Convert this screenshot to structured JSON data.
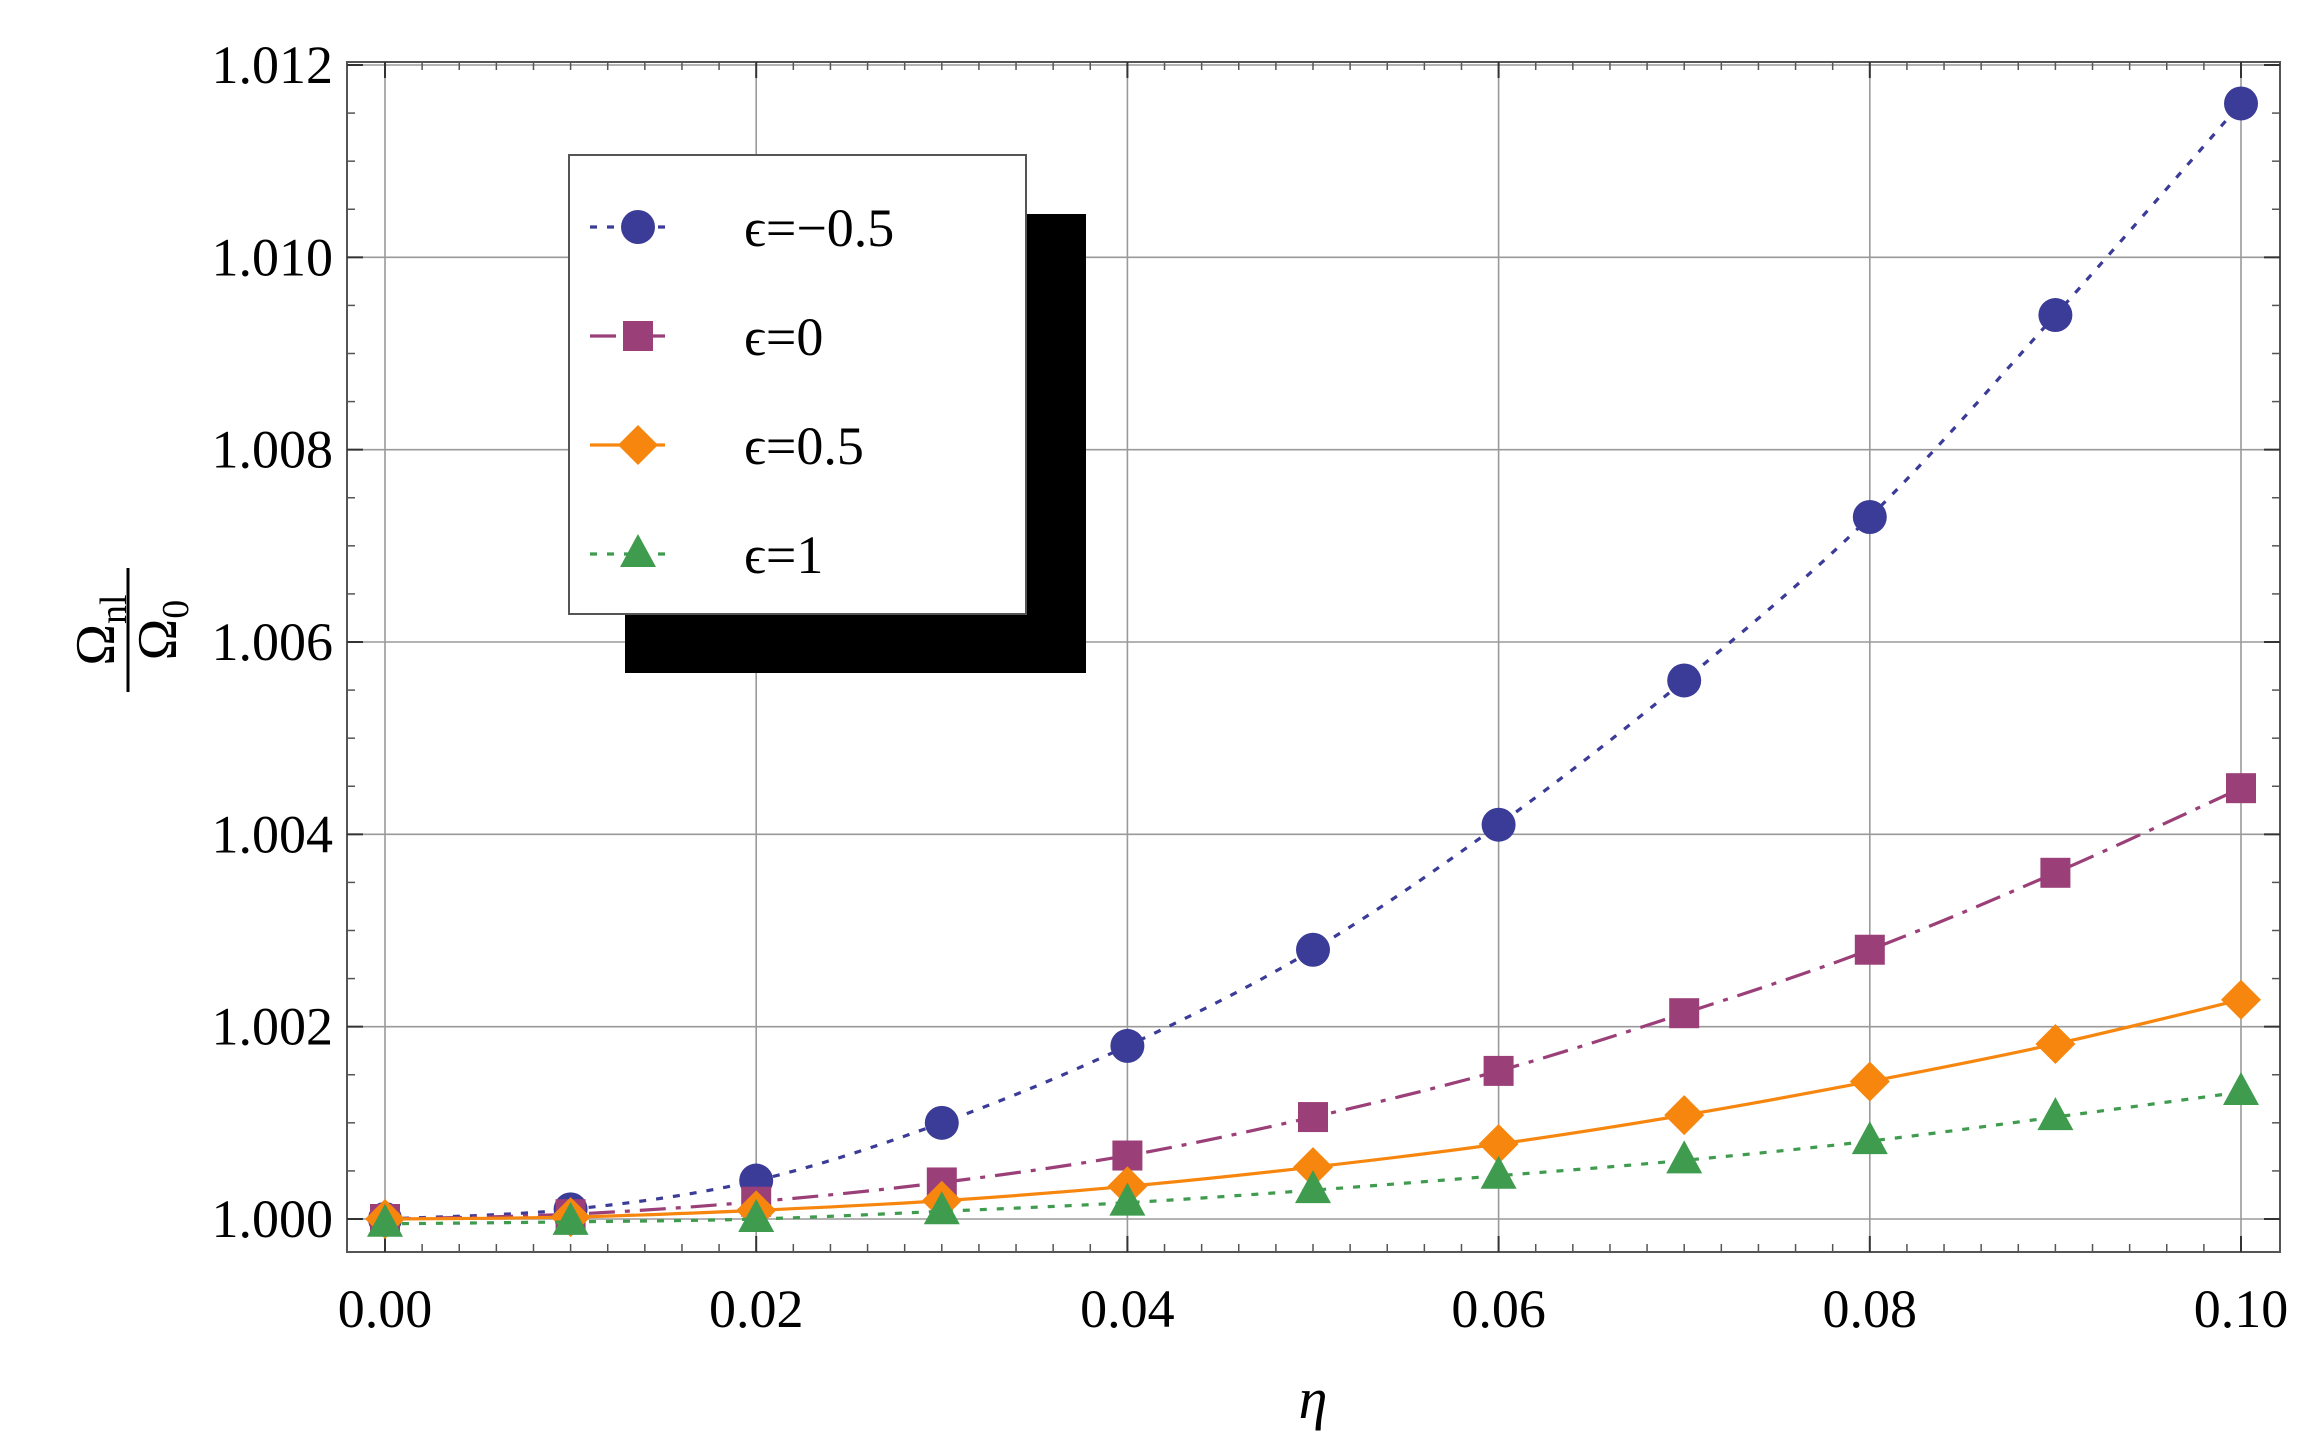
{
  "chart_data": {
    "type": "line",
    "xlabel": "η",
    "ylabel": {
      "numerator": "Ω",
      "numerator_sub": "nl",
      "denominator": "Ω",
      "denominator_sub": "0"
    },
    "xlim": [
      0.0,
      0.1
    ],
    "ylim": [
      1.0,
      1.012
    ],
    "xticks": [
      "0.00",
      "0.02",
      "0.04",
      "0.06",
      "0.08",
      "0.10"
    ],
    "yticks": [
      "1.000",
      "1.002",
      "1.004",
      "1.006",
      "1.008",
      "1.010",
      "1.012"
    ],
    "grid": true,
    "legend_position": "top-left",
    "x": [
      0.0,
      0.01,
      0.02,
      0.03,
      0.04,
      0.05,
      0.06,
      0.07,
      0.08,
      0.09,
      0.1
    ],
    "series": [
      {
        "name": "ϵ=−0.5",
        "color": "#3b3b98",
        "marker": "circle",
        "line_style": "dotted",
        "values": [
          1.0,
          1.0001,
          1.0004,
          1.001,
          1.0018,
          1.0028,
          1.0041,
          1.0056,
          1.0073,
          1.0094,
          1.0116
        ]
      },
      {
        "name": "ϵ=0",
        "color": "#9b3f78",
        "marker": "square",
        "line_style": "dashdot",
        "values": [
          1.0,
          1.00005,
          1.00018,
          1.00038,
          1.00066,
          1.00106,
          1.00154,
          1.00214,
          1.0028,
          1.0036,
          1.00448
        ]
      },
      {
        "name": "ϵ=0.5",
        "color": "#f7860f",
        "marker": "diamond",
        "line_style": "solid",
        "values": [
          1.0,
          1.00002,
          1.00009,
          1.00019,
          1.00034,
          1.00054,
          1.00078,
          1.00108,
          1.00143,
          1.00182,
          1.00228
        ]
      },
      {
        "name": "ϵ=1",
        "color": "#3f9b4e",
        "marker": "triangle",
        "line_style": "dotted",
        "values": [
          0.99995,
          0.99997,
          1.0,
          1.00008,
          1.00017,
          1.0003,
          1.00045,
          1.00061,
          1.00081,
          1.00106,
          1.00132
        ]
      }
    ]
  }
}
